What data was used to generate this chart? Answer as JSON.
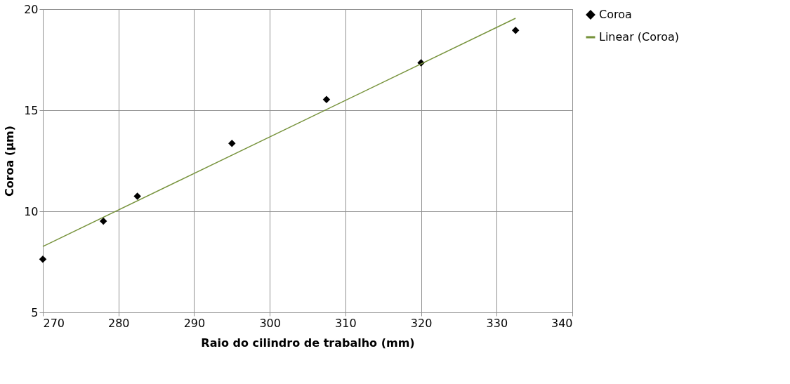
{
  "chart_data": {
    "type": "scatter",
    "xlabel": "Raio do cilindro de trabalho (mm)",
    "ylabel": "Coroa (µm)",
    "xlim": [
      270,
      340
    ],
    "xticks": [
      270,
      280,
      290,
      300,
      310,
      320,
      330,
      340
    ],
    "ylim": [
      5,
      20
    ],
    "yticks": [
      5,
      10,
      15,
      20
    ],
    "grid": true,
    "legend": "right",
    "series": [
      {
        "name": "Coroa",
        "marker": "diamond",
        "color": "#000000",
        "x": [
          270,
          278,
          282.5,
          295,
          307.5,
          320,
          332.5
        ],
        "values": [
          7.63,
          9.51,
          10.75,
          13.36,
          15.53,
          17.34,
          18.95
        ]
      },
      {
        "name": "Linear (Coroa)",
        "type": "line",
        "marker": "none",
        "color": "#77933c",
        "x": [
          270,
          332.5
        ],
        "values": [
          8.26,
          19.55
        ]
      }
    ]
  }
}
